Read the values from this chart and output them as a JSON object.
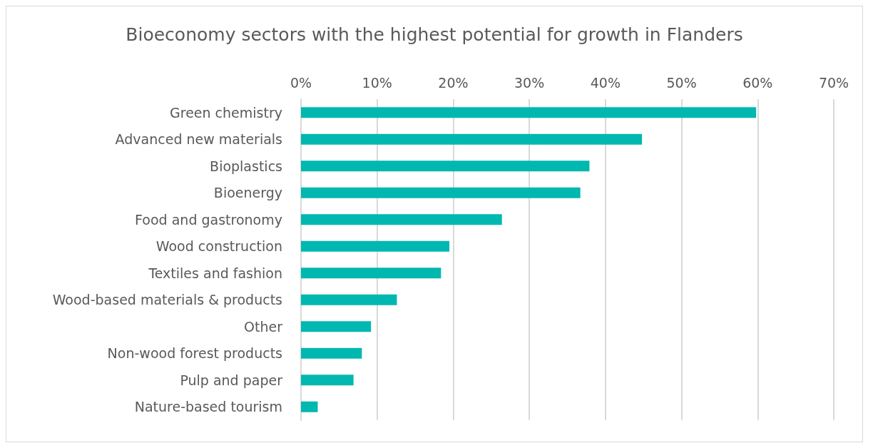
{
  "chart_data": {
    "type": "bar",
    "orientation": "horizontal",
    "title": "Bioeconomy sectors with the highest potential for growth in Flanders",
    "categories": [
      "Green chemistry",
      "Advanced new materials",
      "Bioplastics",
      "Bioenergy",
      "Food and gastronomy",
      "Wood construction",
      "Textiles and fashion",
      "Wood-based materials & products",
      "Other",
      "Non-wood forest products",
      "Pulp and paper",
      "Nature-based tourism"
    ],
    "values": [
      59.8,
      44.8,
      37.9,
      36.7,
      26.4,
      19.5,
      18.4,
      12.6,
      9.2,
      8.0,
      6.9,
      2.2
    ],
    "color": "#00b8b0",
    "xlim": [
      0,
      70
    ],
    "xticks": [
      {
        "value": 0,
        "label": "0%"
      },
      {
        "value": 10,
        "label": "10%"
      },
      {
        "value": 20,
        "label": "20%"
      },
      {
        "value": 30,
        "label": "30%"
      },
      {
        "value": 40,
        "label": "40%"
      },
      {
        "value": 50,
        "label": "50%"
      },
      {
        "value": 60,
        "label": "60%"
      },
      {
        "value": 70,
        "label": "70%"
      }
    ],
    "grid": "x"
  }
}
